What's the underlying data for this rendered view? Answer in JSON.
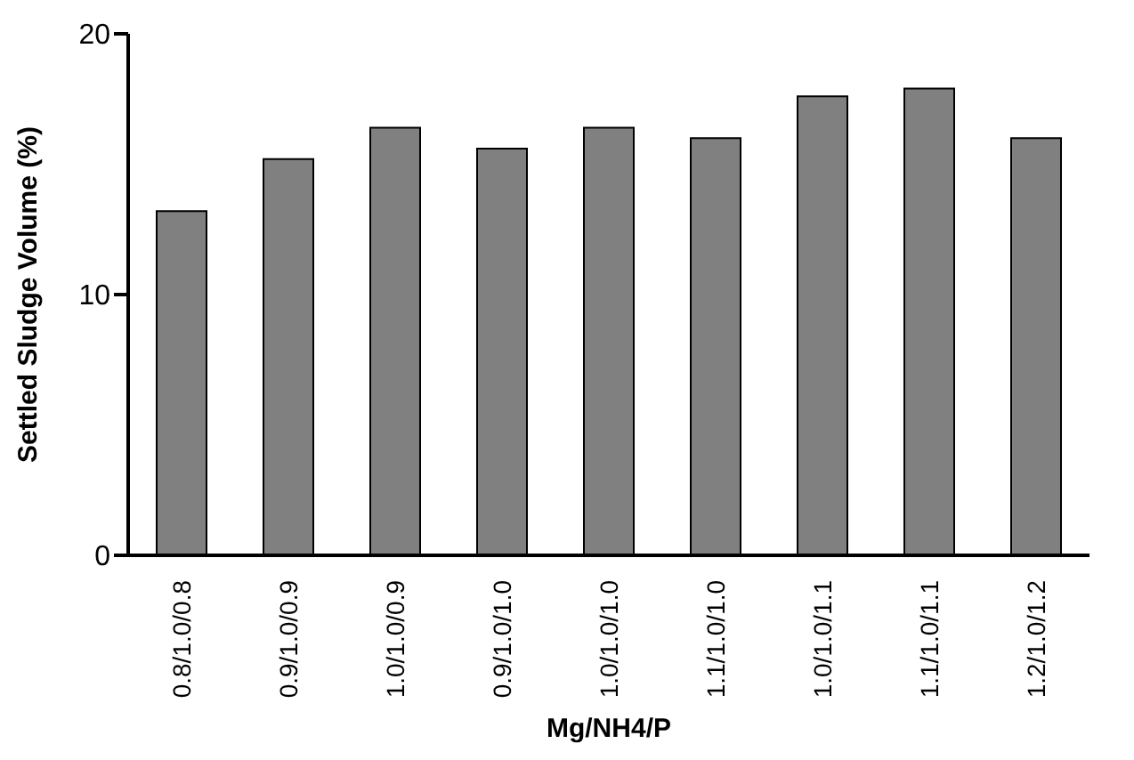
{
  "chart_data": {
    "type": "bar",
    "xlabel": "Mg/NH4/P",
    "ylabel": "Settled Sludge Volume (%)",
    "categories": [
      "0.8/1.0/0.8",
      "0.9/1.0/0.9",
      "1.0/1.0/0.9",
      "0.9/1.0/1.0",
      "1.0/1.0/1.0",
      "1.1/1.0/1.0",
      "1.0/1.0/1.1",
      "1.1/1.0/1.1",
      "1.2/1.0/1.2"
    ],
    "values": [
      13.2,
      15.2,
      16.4,
      15.6,
      16.4,
      16.0,
      17.6,
      17.9,
      16.0
    ],
    "color": "#808080",
    "ylim": [
      0,
      20
    ],
    "yticks": [
      0,
      10,
      20
    ],
    "grid": false,
    "legend": false
  }
}
